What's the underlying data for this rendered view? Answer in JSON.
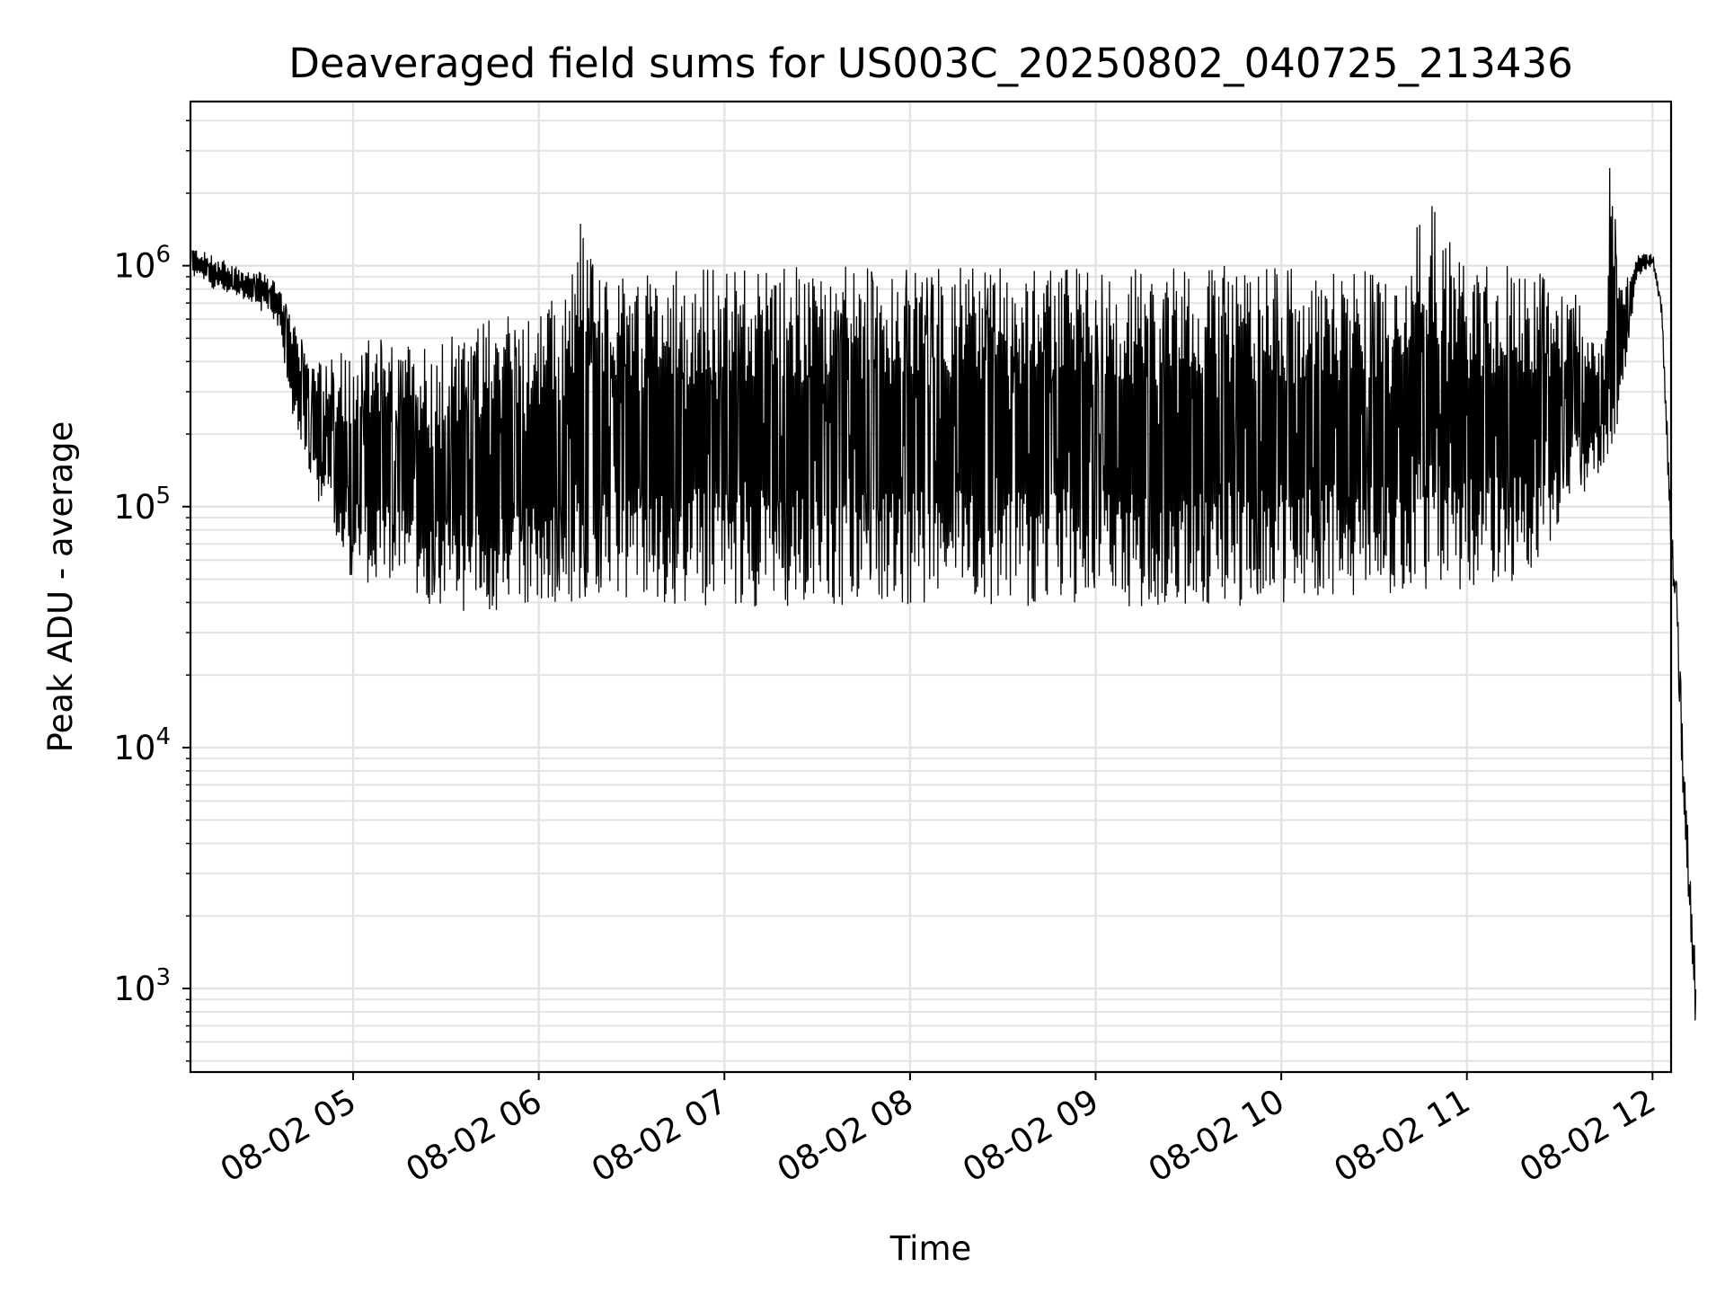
{
  "chart_data": {
    "type": "line",
    "title": "Deaveraged field sums for US003C_20250802_040725_213436",
    "xlabel": "Time",
    "ylabel": "Peak ADU - average",
    "yscale": "log",
    "ylim": [
      450,
      4800000
    ],
    "xlim": [
      "2025-08-02 04:07:25",
      "2025-08-02 12:06:00"
    ],
    "grid": "on (major and minor)",
    "line_color": "#000000",
    "x_ticks": [
      "2025-08-02 05:00",
      "2025-08-02 06:00",
      "2025-08-02 07:00",
      "2025-08-02 08:00",
      "2025-08-02 09:00",
      "2025-08-02 10:00",
      "2025-08-02 11:00",
      "2025-08-02 12:00"
    ],
    "x_tick_labels": [
      "08-02 05",
      "08-02 06",
      "08-02 07",
      "08-02 08",
      "08-02 09",
      "08-02 10",
      "08-02 11",
      "08-02 12"
    ],
    "y_ticks": [
      1000,
      10000,
      100000,
      1000000
    ],
    "y_tick_labels": [
      {
        "base": "10",
        "exp": "3"
      },
      {
        "base": "10",
        "exp": "4"
      },
      {
        "base": "10",
        "exp": "5"
      },
      {
        "base": "10",
        "exp": "6"
      }
    ],
    "series": [
      {
        "x": [
          "2025-08-02 04:08",
          "2025-08-02 04:15",
          "2025-08-02 04:22",
          "2025-08-02 04:30",
          "2025-08-02 04:36",
          "2025-08-02 04:40",
          "2025-08-02 04:45",
          "2025-08-02 04:50",
          "2025-08-02 04:55",
          "2025-08-02 05:00",
          "2025-08-02 05:10",
          "2025-08-02 05:20",
          "2025-08-02 05:30",
          "2025-08-02 05:40",
          "2025-08-02 05:50",
          "2025-08-02 06:00",
          "2025-08-02 06:10",
          "2025-08-02 06:14",
          "2025-08-02 06:20",
          "2025-08-02 06:30",
          "2025-08-02 06:40",
          "2025-08-02 06:50",
          "2025-08-02 07:00",
          "2025-08-02 07:20",
          "2025-08-02 07:40",
          "2025-08-02 08:00",
          "2025-08-02 08:17",
          "2025-08-02 08:30",
          "2025-08-02 08:50",
          "2025-08-02 09:00",
          "2025-08-02 09:20",
          "2025-08-02 09:40",
          "2025-08-02 10:00",
          "2025-08-02 10:20",
          "2025-08-02 10:40",
          "2025-08-02 10:43",
          "2025-08-02 11:00",
          "2025-08-02 11:20",
          "2025-08-02 11:35",
          "2025-08-02 11:45",
          "2025-08-02 11:46",
          "2025-08-02 11:50",
          "2025-08-02 11:55",
          "2025-08-02 12:00",
          "2025-08-02 12:03",
          "2025-08-02 12:06",
          "2025-08-02 12:08",
          "2025-08-02 12:10",
          "2025-08-02 12:14"
        ],
        "y_upper": [
          1200000,
          1100000,
          1000000,
          950000,
          850000,
          600000,
          450000,
          400000,
          450000,
          480000,
          500000,
          480000,
          550000,
          600000,
          650000,
          700000,
          800000,
          1850000,
          850000,
          900000,
          950000,
          1000000,
          1000000,
          1000000,
          1000000,
          1000000,
          1000000,
          1000000,
          1000000,
          1000000,
          1000000,
          1000000,
          1000000,
          1000000,
          1000000,
          2400000,
          1000000,
          1000000,
          800000,
          500000,
          3100000,
          800000,
          1100000,
          1150000,
          700000,
          100000,
          45000,
          10000,
          1200
        ],
        "y_lower": [
          900000,
          800000,
          750000,
          650000,
          550000,
          250000,
          150000,
          90000,
          60000,
          50000,
          45000,
          40000,
          38000,
          35000,
          35000,
          38000,
          40000,
          40000,
          42000,
          40000,
          40000,
          38000,
          38000,
          38000,
          38000,
          38000,
          38000,
          38000,
          38000,
          38000,
          38000,
          38000,
          40000,
          40000,
          45000,
          45000,
          45000,
          50000,
          100000,
          150000,
          150000,
          250000,
          900000,
          1000000,
          600000,
          60000,
          25000,
          5000,
          650
        ]
      }
    ]
  }
}
